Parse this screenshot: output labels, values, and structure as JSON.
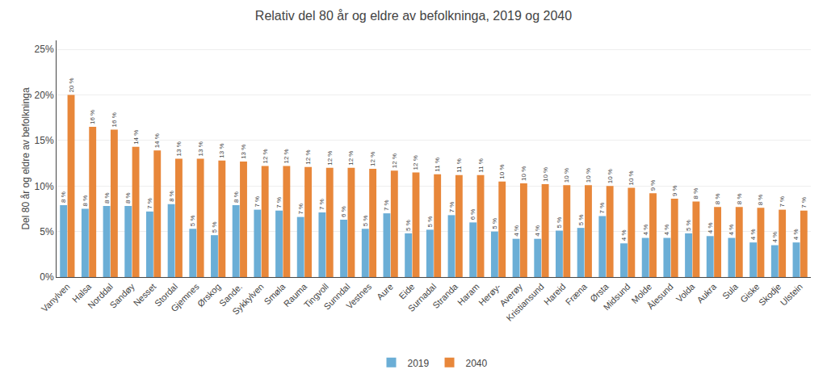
{
  "chart_data": {
    "type": "bar",
    "title": "Relativ del 80 år og eldre av befolkninga, 2019 og 2040",
    "ylabel": "Del 80 år og eldre av befolkninga",
    "categories": [
      "Vanylven",
      "Halsa",
      "Norddal",
      "Sandøy",
      "Nesset",
      "Stordal",
      "Gjemnes",
      "Ørskog",
      "Sande.",
      "Sykkylven",
      "Smøla",
      "Rauma",
      "Tingvoll",
      "Sunndal",
      "Vestnes",
      "Aure",
      "Eide",
      "Surnadal",
      "Stranda",
      "Haram",
      "Herøy-",
      "Averøy",
      "Kristiansund",
      "Hareid",
      "Fræna",
      "Ørsta",
      "Midsund",
      "Molde",
      "Ålesund",
      "Volda",
      "Aukra",
      "Sula",
      "Giske",
      "Skodje",
      "Ulstein"
    ],
    "series": [
      {
        "name": "2019",
        "color": "#6baed6",
        "values": [
          0.079,
          0.075,
          0.078,
          0.078,
          0.072,
          0.08,
          0.053,
          0.046,
          0.079,
          0.074,
          0.073,
          0.066,
          0.071,
          0.063,
          0.053,
          0.07,
          0.048,
          0.052,
          0.068,
          0.06,
          0.05,
          0.042,
          0.042,
          0.051,
          0.054,
          0.067,
          0.037,
          0.043,
          0.043,
          0.048,
          0.045,
          0.043,
          0.038,
          0.035,
          0.038
        ],
        "value_labels": [
          "8 %",
          "8 %",
          "8 %",
          "8 %",
          "7 %",
          "8 %",
          "5 %",
          "5 %",
          "8 %",
          "7 %",
          "7 %",
          "7 %",
          "7 %",
          "6 %",
          "5 %",
          "7 %",
          "5 %",
          "5 %",
          "7 %",
          "6 %",
          "5 %",
          "4 %",
          "4 %",
          "5 %",
          "5 %",
          "7 %",
          "4 %",
          "4 %",
          "4 %",
          "5 %",
          "4 %",
          "4 %",
          "4 %",
          "4 %",
          "4 %"
        ]
      },
      {
        "name": "2040",
        "color": "#e8873a",
        "values": [
          0.2,
          0.165,
          0.162,
          0.143,
          0.139,
          0.13,
          0.13,
          0.128,
          0.127,
          0.122,
          0.122,
          0.121,
          0.12,
          0.12,
          0.119,
          0.117,
          0.115,
          0.113,
          0.112,
          0.112,
          0.105,
          0.103,
          0.102,
          0.101,
          0.101,
          0.1,
          0.098,
          0.092,
          0.086,
          0.083,
          0.077,
          0.077,
          0.076,
          0.074,
          0.073
        ],
        "value_labels": [
          "20 %",
          "16 %",
          "16 %",
          "14 %",
          "14 %",
          "13 %",
          "13 %",
          "13 %",
          "13 %",
          "12 %",
          "12 %",
          "12 %",
          "12 %",
          "12 %",
          "12 %",
          "12 %",
          "12 %",
          "11 %",
          "11 %",
          "11 %",
          "10 %",
          "10 %",
          "10 %",
          "10 %",
          "10 %",
          "10 %",
          "10 %",
          "9 %",
          "9 %",
          "8 %",
          "8 %",
          "8 %",
          "8 %",
          "7 %",
          "7 %"
        ]
      }
    ],
    "ylim": [
      0,
      0.26
    ],
    "yticks": [
      {
        "value": 0.0,
        "label": "0%"
      },
      {
        "value": 0.05,
        "label": "5%"
      },
      {
        "value": 0.1,
        "label": "10%"
      },
      {
        "value": 0.15,
        "label": "15%"
      },
      {
        "value": 0.2,
        "label": "20%"
      },
      {
        "value": 0.25,
        "label": "25%"
      }
    ],
    "grid": true,
    "legend": "bottom",
    "data_labels": true
  }
}
